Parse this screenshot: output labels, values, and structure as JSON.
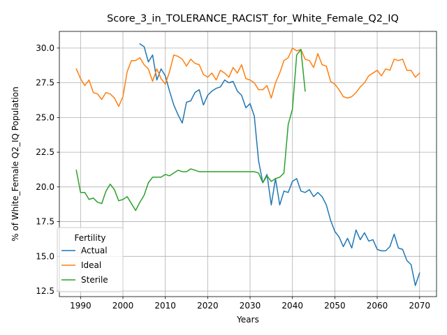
{
  "chart_data": {
    "type": "line",
    "title": "Score_3_in_TOLERANCE_RACIST_for_White_Female_Q2_IQ",
    "xlabel": "Years",
    "ylabel": "% of White_Female Q2_IQ Population",
    "xlim": [
      1985,
      2074
    ],
    "ylim": [
      12.1,
      31.2
    ],
    "xticks": [
      1990,
      2000,
      2010,
      2020,
      2030,
      2040,
      2050,
      2060,
      2070
    ],
    "yticks": [
      12.5,
      15.0,
      17.5,
      20.0,
      22.5,
      25.0,
      27.5,
      30.0
    ],
    "ytick_labels": [
      "12.5",
      "15.0",
      "17.5",
      "20.0",
      "22.5",
      "25.0",
      "27.5",
      "30.0"
    ],
    "grid": true,
    "legend": {
      "title": "Fertility",
      "placement": "lower-left"
    },
    "series": [
      {
        "name": "Actual",
        "color": "#1f77b4",
        "x": [
          2004,
          2005,
          2006,
          2007,
          2008,
          2009,
          2010,
          2011,
          2012,
          2013,
          2014,
          2015,
          2016,
          2017,
          2018,
          2019,
          2020,
          2021,
          2022,
          2023,
          2024,
          2025,
          2026,
          2027,
          2028,
          2029,
          2030,
          2031,
          2032,
          2033,
          2034,
          2035,
          2036,
          2037,
          2038,
          2039,
          2040,
          2041,
          2042,
          2043,
          2044,
          2045,
          2046,
          2047,
          2048,
          2049,
          2050,
          2051,
          2052,
          2053,
          2054,
          2055,
          2056,
          2057,
          2058,
          2059,
          2060,
          2061,
          2062,
          2063,
          2064,
          2065,
          2066,
          2067,
          2068,
          2069,
          2070
        ],
        "values": [
          30.3,
          30.1,
          29.0,
          29.5,
          27.7,
          28.5,
          28.0,
          26.9,
          25.9,
          25.2,
          24.6,
          26.1,
          26.2,
          26.8,
          27.0,
          25.9,
          26.6,
          26.9,
          27.1,
          27.2,
          27.7,
          27.5,
          27.6,
          26.9,
          26.6,
          25.7,
          26.0,
          25.1,
          21.9,
          20.3,
          20.9,
          18.7,
          20.6,
          18.7,
          19.7,
          19.6,
          20.4,
          20.6,
          19.7,
          19.6,
          19.8,
          19.3,
          19.6,
          19.3,
          18.7,
          17.6,
          16.8,
          16.4,
          15.7,
          16.3,
          15.6,
          16.9,
          16.2,
          16.7,
          16.1,
          16.2,
          15.5,
          15.4,
          15.4,
          15.7,
          16.6,
          15.6,
          15.5,
          14.7,
          14.4,
          12.9,
          13.8
        ]
      },
      {
        "name": "Ideal",
        "color": "#ff7f0e",
        "x": [
          1989,
          1990,
          1991,
          1992,
          1993,
          1994,
          1995,
          1996,
          1997,
          1998,
          1999,
          2000,
          2001,
          2002,
          2003,
          2004,
          2005,
          2006,
          2007,
          2008,
          2009,
          2010,
          2011,
          2012,
          2013,
          2014,
          2015,
          2016,
          2017,
          2018,
          2019,
          2020,
          2021,
          2022,
          2023,
          2024,
          2025,
          2026,
          2027,
          2028,
          2029,
          2030,
          2031,
          2032,
          2033,
          2034,
          2035,
          2036,
          2037,
          2038,
          2039,
          2040,
          2041,
          2042,
          2043,
          2044,
          2045,
          2046,
          2047,
          2048,
          2049,
          2050,
          2051,
          2052,
          2053,
          2054,
          2055,
          2056,
          2057,
          2058,
          2059,
          2060,
          2061,
          2062,
          2063,
          2064,
          2065,
          2066,
          2067,
          2068,
          2069,
          2070
        ],
        "values": [
          28.5,
          27.8,
          27.3,
          27.7,
          26.8,
          26.7,
          26.3,
          26.8,
          26.7,
          26.4,
          25.8,
          26.5,
          28.3,
          29.1,
          29.1,
          29.3,
          28.8,
          28.5,
          27.6,
          28.5,
          27.8,
          27.4,
          28.3,
          29.5,
          29.4,
          29.2,
          28.7,
          29.2,
          28.9,
          28.8,
          28.1,
          27.9,
          28.2,
          27.7,
          28.4,
          28.2,
          27.9,
          28.6,
          28.2,
          28.8,
          27.8,
          27.7,
          27.5,
          27.0,
          27.0,
          27.3,
          26.4,
          27.5,
          28.2,
          29.1,
          29.3,
          30.0,
          29.8,
          29.9,
          29.2,
          29.1,
          28.6,
          29.6,
          28.8,
          28.7,
          27.6,
          27.4,
          27.0,
          26.5,
          26.4,
          26.5,
          26.8,
          27.2,
          27.5,
          28.0,
          28.2,
          28.4,
          28.0,
          28.5,
          28.4,
          29.2,
          29.1,
          29.2,
          28.4,
          28.4,
          27.9,
          28.2
        ]
      },
      {
        "name": "Sterile",
        "color": "#2ca02c",
        "x": [
          1989,
          1990,
          1991,
          1992,
          1993,
          1994,
          1995,
          1996,
          1997,
          1998,
          1999,
          2000,
          2001,
          2002,
          2003,
          2004,
          2005,
          2006,
          2007,
          2008,
          2009,
          2010,
          2011,
          2012,
          2013,
          2014,
          2015,
          2016,
          2017,
          2018,
          2019,
          2020,
          2021,
          2022,
          2023,
          2024,
          2025,
          2026,
          2027,
          2028,
          2029,
          2030,
          2031,
          2032,
          2033,
          2034,
          2035,
          2036,
          2037,
          2038,
          2039,
          2040,
          2041,
          2042,
          2043
        ],
        "values": [
          21.2,
          19.6,
          19.6,
          19.1,
          19.2,
          18.9,
          18.8,
          19.7,
          20.2,
          19.8,
          19.0,
          19.1,
          19.3,
          18.8,
          18.3,
          18.9,
          19.4,
          20.3,
          20.7,
          20.7,
          20.7,
          20.9,
          20.8,
          21.0,
          21.2,
          21.1,
          21.1,
          21.3,
          21.2,
          21.1,
          21.1,
          21.1,
          21.1,
          21.1,
          21.1,
          21.1,
          21.1,
          21.1,
          21.1,
          21.1,
          21.1,
          21.1,
          21.1,
          21.0,
          20.3,
          20.8,
          20.4,
          20.6,
          20.7,
          21.0,
          24.5,
          25.6,
          29.5,
          29.9,
          26.9
        ]
      }
    ]
  }
}
